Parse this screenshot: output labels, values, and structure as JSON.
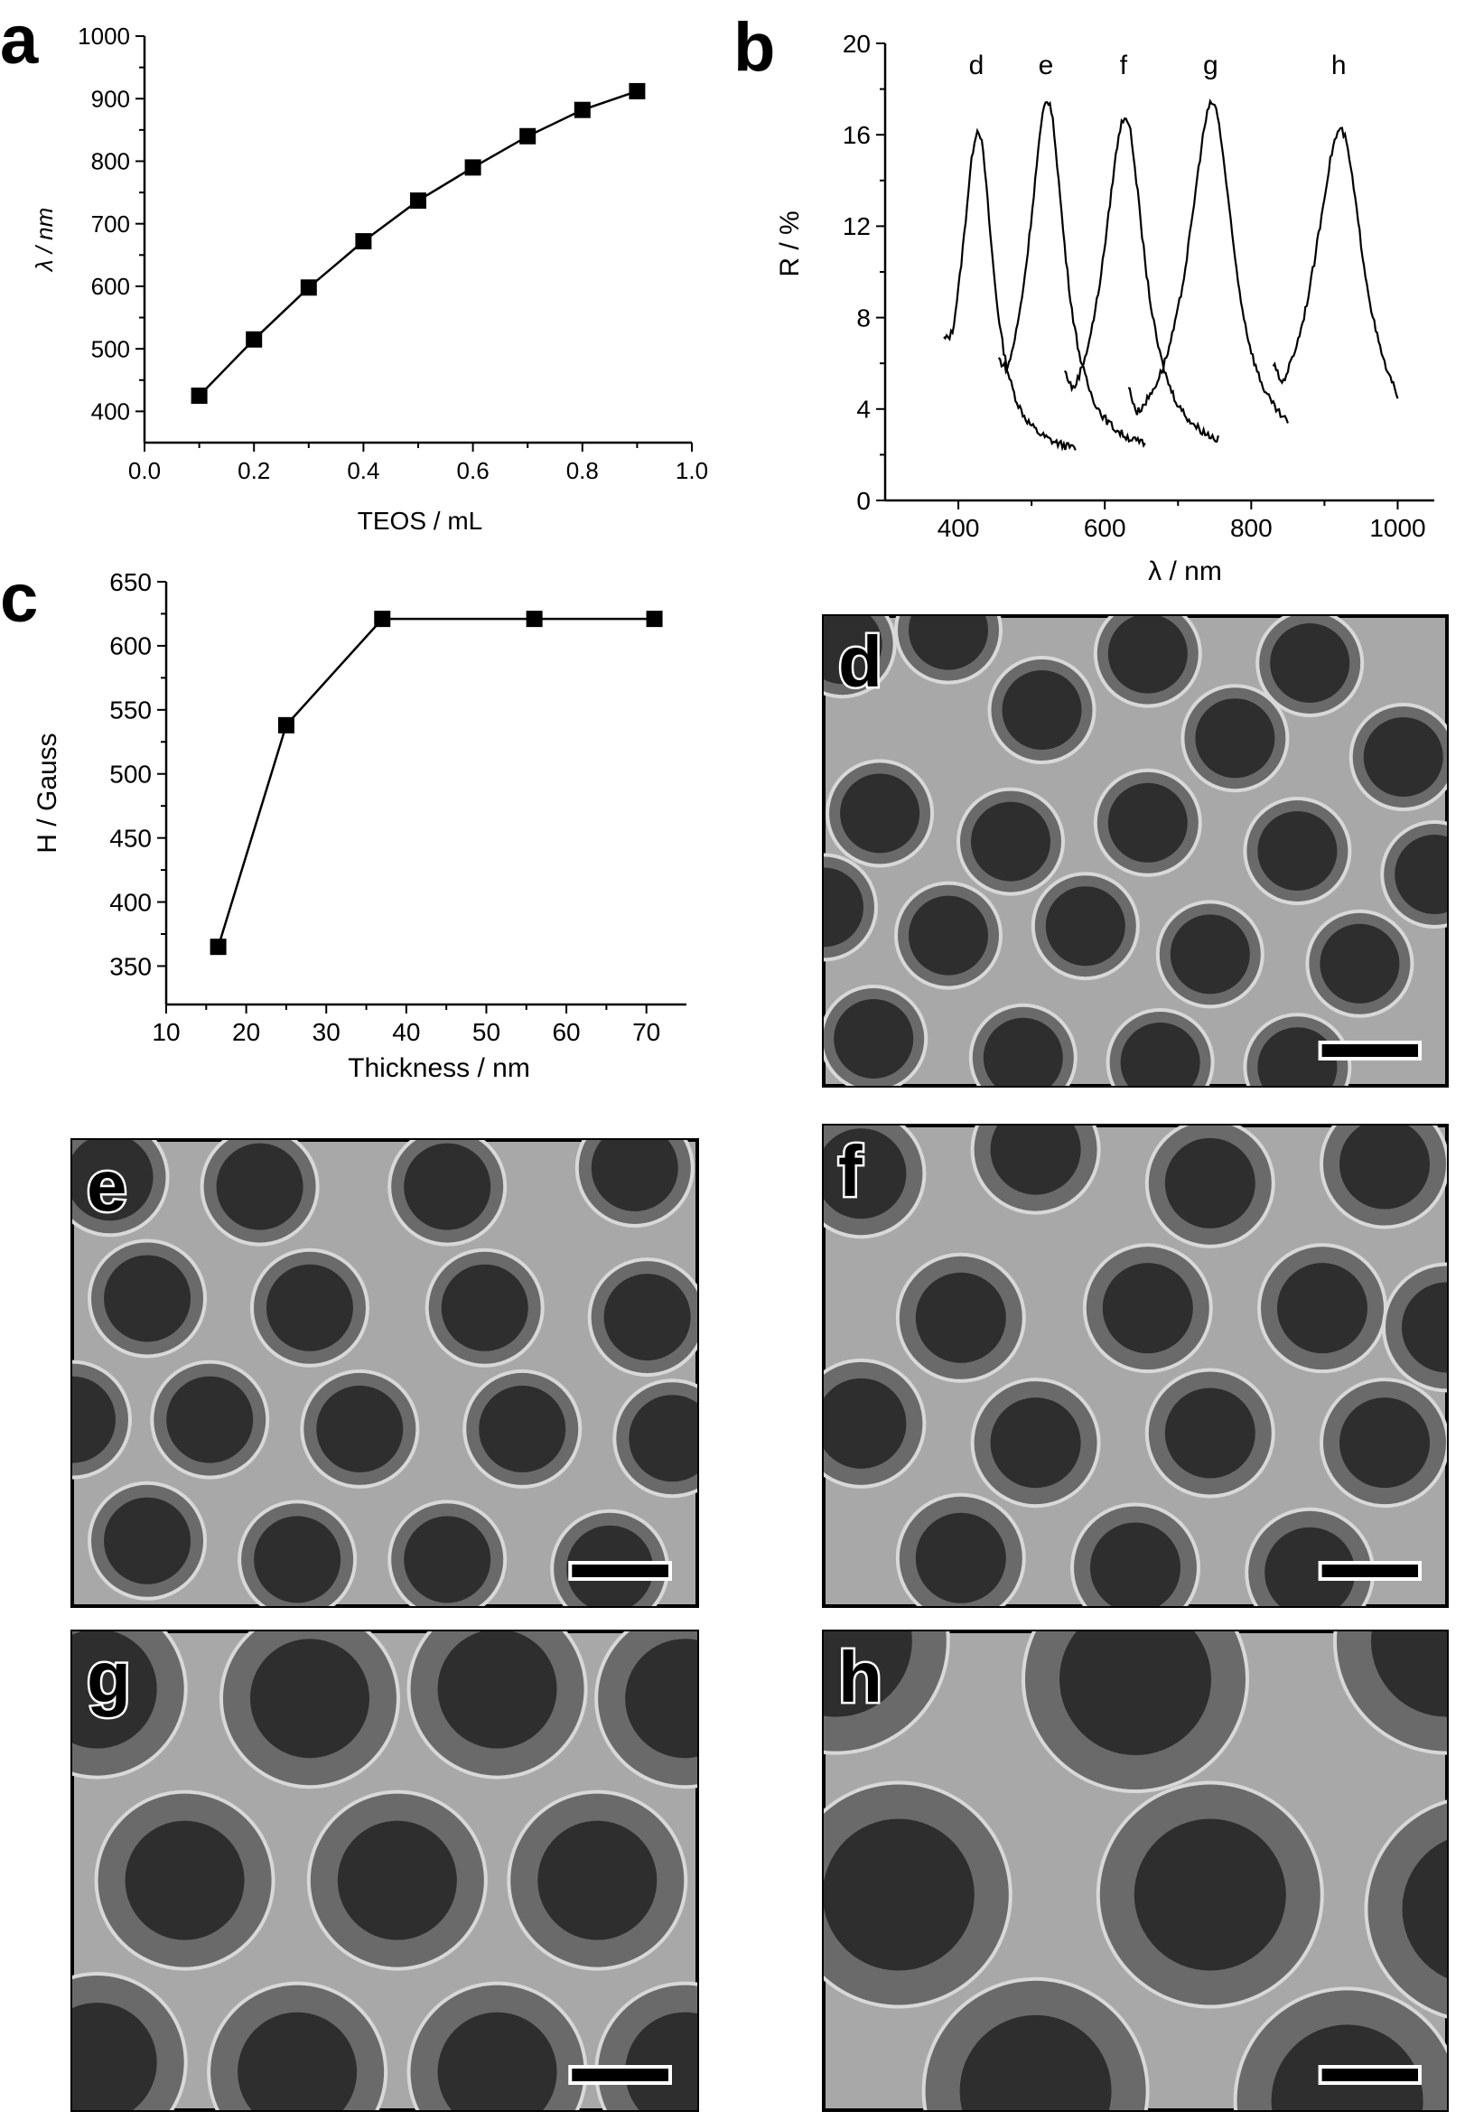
{
  "chart_data": [
    {
      "panel": "a",
      "type": "line",
      "xlabel": "TEOS / mL",
      "ylabel": "λ / nm",
      "xlim": [
        0.0,
        1.0
      ],
      "ylim": [
        350,
        1000
      ],
      "xticks": [
        "0.0",
        "0.2",
        "0.4",
        "0.6",
        "0.8",
        "1.0"
      ],
      "yticks": [
        "400",
        "500",
        "600",
        "700",
        "800",
        "900",
        "1000"
      ],
      "marker": "square",
      "series": [
        {
          "x": [
            0.1,
            0.2,
            0.3,
            0.4,
            0.5,
            0.6,
            0.7,
            0.8,
            0.9
          ],
          "y": [
            425,
            515,
            598,
            672,
            737,
            790,
            840,
            882,
            912
          ]
        }
      ]
    },
    {
      "panel": "b",
      "type": "line",
      "xlabel": "λ / nm",
      "ylabel": "R / %",
      "xlim": [
        300,
        1050
      ],
      "ylim": [
        0,
        20
      ],
      "xticks": [
        "400",
        "600",
        "800",
        "1000"
      ],
      "yticks": [
        "0",
        "4",
        "8",
        "12",
        "16",
        "20"
      ],
      "series": [
        {
          "name": "d",
          "peak": 427,
          "height": 16.2,
          "start": 380,
          "end": 560
        },
        {
          "name": "e",
          "peak": 522,
          "height": 17.5,
          "start": 455,
          "end": 655
        },
        {
          "name": "f",
          "peak": 628,
          "height": 16.8,
          "start": 545,
          "end": 755
        },
        {
          "name": "g",
          "peak": 747,
          "height": 17.4,
          "start": 632,
          "end": 850
        },
        {
          "name": "h",
          "peak": 922,
          "height": 16.2,
          "start": 830,
          "end": 1000
        }
      ]
    },
    {
      "panel": "c",
      "type": "line",
      "xlabel": "Thickness / nm",
      "ylabel": "H / Gauss",
      "xlim": [
        10,
        75
      ],
      "ylim": [
        320,
        650
      ],
      "xticks": [
        "10",
        "20",
        "30",
        "40",
        "50",
        "60",
        "70"
      ],
      "yticks": [
        "350",
        "400",
        "450",
        "500",
        "550",
        "600",
        "650"
      ],
      "marker": "square",
      "series": [
        {
          "x": [
            16.5,
            25,
            37,
            56,
            71
          ],
          "y": [
            365,
            538,
            621,
            621,
            621
          ]
        }
      ]
    }
  ],
  "panel_labels": {
    "a": "a",
    "b": "b",
    "c": "c"
  },
  "micrographs": [
    {
      "label": "d",
      "size": "small",
      "tone": "light-shell"
    },
    {
      "label": "e",
      "size": "small",
      "tone": "light-shell"
    },
    {
      "label": "f",
      "size": "medium",
      "tone": "medium-shell"
    },
    {
      "label": "g",
      "size": "large",
      "tone": "thick-shell"
    },
    {
      "label": "h",
      "size": "xlarge",
      "tone": "thick-shell"
    }
  ],
  "colors": {
    "line": "#000000",
    "micrograph_bg": "#a9a9a9",
    "particle_core": "#2c2c2c",
    "particle_shell": "#6b6b6b"
  }
}
